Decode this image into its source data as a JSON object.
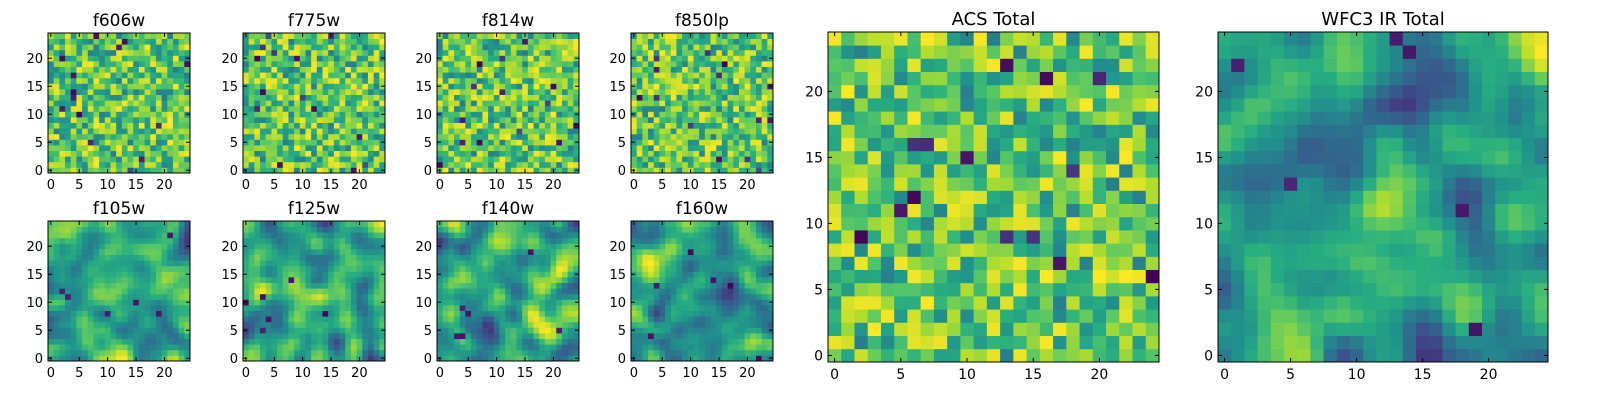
{
  "figure": {
    "panels": [
      {
        "id": "f606w",
        "title": "f606w"
      },
      {
        "id": "f775w",
        "title": "f775w"
      },
      {
        "id": "f814w",
        "title": "f814w"
      },
      {
        "id": "f850lp",
        "title": "f850lp"
      },
      {
        "id": "f105w",
        "title": "f105w"
      },
      {
        "id": "f125w",
        "title": "f125w"
      },
      {
        "id": "f140w",
        "title": "f140w"
      },
      {
        "id": "f160w",
        "title": "f160w"
      },
      {
        "id": "acs-total",
        "title": "ACS Total"
      },
      {
        "id": "wfc3-ir-total",
        "title": "WFC3 IR Total"
      }
    ]
  },
  "chart_data": [
    {
      "type": "heatmap",
      "title": "f606w",
      "grid_size": [
        25,
        25
      ],
      "xlim": [
        0,
        24
      ],
      "ylim": [
        0,
        24
      ],
      "xticks": [
        "0",
        "5",
        "10",
        "15",
        "20"
      ],
      "yticks": [
        "0",
        "5",
        "10",
        "15",
        "20"
      ],
      "colormap": "viridis",
      "pattern": "noise",
      "seed": 11,
      "note": "pixel values approximated; mostly green-yellow noise with sparse dark pixels"
    },
    {
      "type": "heatmap",
      "title": "f775w",
      "grid_size": [
        25,
        25
      ],
      "xlim": [
        0,
        24
      ],
      "ylim": [
        0,
        24
      ],
      "xticks": [
        "0",
        "5",
        "10",
        "15",
        "20"
      ],
      "yticks": [
        "0",
        "5",
        "10",
        "15",
        "20"
      ],
      "colormap": "viridis",
      "pattern": "noise",
      "seed": 23
    },
    {
      "type": "heatmap",
      "title": "f814w",
      "grid_size": [
        25,
        25
      ],
      "xlim": [
        0,
        24
      ],
      "ylim": [
        0,
        24
      ],
      "xticks": [
        "0",
        "5",
        "10",
        "15",
        "20"
      ],
      "yticks": [
        "0",
        "5",
        "10",
        "15",
        "20"
      ],
      "colormap": "viridis",
      "pattern": "noise",
      "seed": 37
    },
    {
      "type": "heatmap",
      "title": "f850lp",
      "grid_size": [
        25,
        25
      ],
      "xlim": [
        0,
        24
      ],
      "ylim": [
        0,
        24
      ],
      "xticks": [
        "0",
        "5",
        "10",
        "15",
        "20"
      ],
      "yticks": [
        "0",
        "5",
        "10",
        "15",
        "20"
      ],
      "colormap": "viridis",
      "pattern": "noise",
      "seed": 41
    },
    {
      "type": "heatmap",
      "title": "f105w",
      "grid_size": [
        25,
        25
      ],
      "xlim": [
        0,
        24
      ],
      "ylim": [
        0,
        24
      ],
      "xticks": [
        "0",
        "5",
        "10",
        "15",
        "20"
      ],
      "yticks": [
        "0",
        "5",
        "10",
        "15",
        "20"
      ],
      "colormap": "viridis",
      "pattern": "smooth",
      "seed": 53
    },
    {
      "type": "heatmap",
      "title": "f125w",
      "grid_size": [
        25,
        25
      ],
      "xlim": [
        0,
        24
      ],
      "ylim": [
        0,
        24
      ],
      "xticks": [
        "0",
        "5",
        "10",
        "15",
        "20"
      ],
      "yticks": [
        "0",
        "5",
        "10",
        "15",
        "20"
      ],
      "colormap": "viridis",
      "pattern": "smooth",
      "seed": 67
    },
    {
      "type": "heatmap",
      "title": "f140w",
      "grid_size": [
        25,
        25
      ],
      "xlim": [
        0,
        24
      ],
      "ylim": [
        0,
        24
      ],
      "xticks": [
        "0",
        "5",
        "10",
        "15",
        "20"
      ],
      "yticks": [
        "0",
        "5",
        "10",
        "15",
        "20"
      ],
      "colormap": "viridis",
      "pattern": "smooth",
      "seed": 79
    },
    {
      "type": "heatmap",
      "title": "f160w",
      "grid_size": [
        25,
        25
      ],
      "xlim": [
        0,
        24
      ],
      "ylim": [
        0,
        24
      ],
      "xticks": [
        "0",
        "5",
        "10",
        "15",
        "20"
      ],
      "yticks": [
        "0",
        "5",
        "10",
        "15",
        "20"
      ],
      "colormap": "viridis",
      "pattern": "smooth",
      "seed": 83
    },
    {
      "type": "heatmap",
      "title": "ACS Total",
      "grid_size": [
        25,
        25
      ],
      "xlim": [
        0,
        24
      ],
      "ylim": [
        0,
        24
      ],
      "xticks": [
        "0",
        "5",
        "10",
        "15",
        "20"
      ],
      "yticks": [
        "0",
        "5",
        "10",
        "15",
        "20"
      ],
      "colormap": "viridis",
      "pattern": "noise",
      "seed": 97
    },
    {
      "type": "heatmap",
      "title": "WFC3 IR Total",
      "grid_size": [
        25,
        25
      ],
      "xlim": [
        0,
        24
      ],
      "ylim": [
        0,
        24
      ],
      "xticks": [
        "0",
        "5",
        "10",
        "15",
        "20"
      ],
      "yticks": [
        "0",
        "5",
        "10",
        "15",
        "20"
      ],
      "colormap": "viridis",
      "pattern": "smooth",
      "seed": 101
    }
  ]
}
